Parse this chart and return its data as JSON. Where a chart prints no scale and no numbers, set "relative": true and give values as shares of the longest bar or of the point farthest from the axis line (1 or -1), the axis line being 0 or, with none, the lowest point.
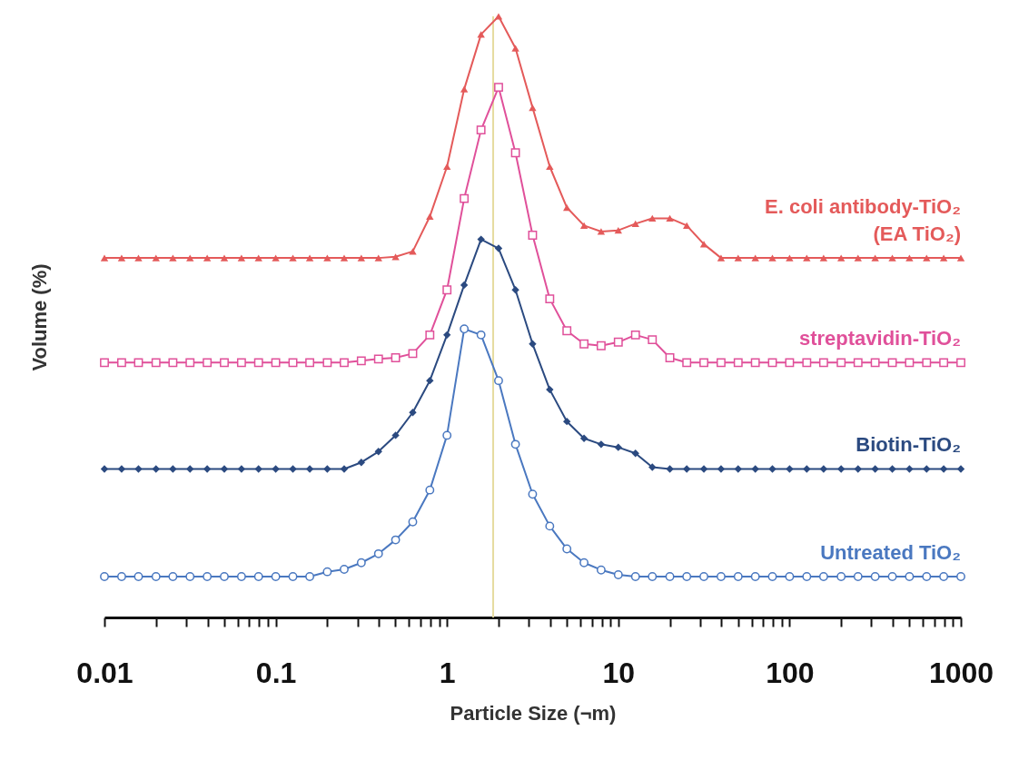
{
  "chart_data": {
    "type": "line",
    "relative": true,
    "xlabel": "Particle Size (¬m)",
    "ylabel": "Volume (%)",
    "log": "x",
    "grid": false,
    "legend": false,
    "xlim": [
      0.01,
      1000
    ],
    "xticks": [
      0.01,
      {
        "value": 0.02,
        "label": null
      },
      {
        "value": 0.03,
        "label": null
      },
      {
        "value": 0.04,
        "label": null
      },
      {
        "value": 0.05,
        "label": null
      },
      {
        "value": 0.06,
        "label": null
      },
      {
        "value": 0.07,
        "label": null
      },
      {
        "value": 0.08,
        "label": null
      },
      {
        "value": 0.09,
        "label": null
      },
      0.1,
      {
        "value": 0.2,
        "label": null
      },
      {
        "value": 0.3,
        "label": null
      },
      {
        "value": 0.4,
        "label": null
      },
      {
        "value": 0.5,
        "label": null
      },
      {
        "value": 0.6,
        "label": null
      },
      {
        "value": 0.7,
        "label": null
      },
      {
        "value": 0.8,
        "label": null
      },
      {
        "value": 0.9,
        "label": null
      },
      1,
      {
        "value": 2,
        "label": null
      },
      {
        "value": 3,
        "label": null
      },
      {
        "value": 4,
        "label": null
      },
      {
        "value": 5,
        "label": null
      },
      {
        "value": 6,
        "label": null
      },
      {
        "value": 7,
        "label": null
      },
      {
        "value": 8,
        "label": null
      },
      {
        "value": 9,
        "label": null
      },
      10,
      {
        "value": 20,
        "label": null
      },
      {
        "value": 30,
        "label": null
      },
      {
        "value": 40,
        "label": null
      },
      {
        "value": 50,
        "label": null
      },
      {
        "value": 60,
        "label": null
      },
      {
        "value": 70,
        "label": null
      },
      {
        "value": 80,
        "label": null
      },
      {
        "value": 90,
        "label": null
      },
      100,
      {
        "value": 200,
        "label": null
      },
      {
        "value": 300,
        "label": null
      },
      {
        "value": 400,
        "label": null
      },
      {
        "value": 500,
        "label": null
      },
      {
        "value": 600,
        "label": null
      },
      {
        "value": 700,
        "label": null
      },
      {
        "value": 800,
        "label": null
      },
      {
        "value": 900,
        "label": null
      },
      1000
    ],
    "x": [
      0.01,
      0.0126,
      0.0158,
      0.02,
      0.0251,
      0.0316,
      0.0398,
      0.0501,
      0.0631,
      0.0794,
      0.1,
      0.126,
      0.158,
      0.2,
      0.251,
      0.316,
      0.398,
      0.501,
      0.631,
      0.794,
      1,
      1.26,
      1.58,
      2,
      2.51,
      3.16,
      3.98,
      5.01,
      6.31,
      7.94,
      10,
      12.6,
      15.8,
      20,
      25.1,
      31.6,
      39.8,
      50.1,
      63.1,
      79.4,
      100,
      126,
      158,
      200,
      251,
      316,
      398,
      501,
      631,
      794,
      1000
    ],
    "ref_lines": [
      {
        "axis": "x",
        "value": 1.86,
        "color": "#e6dca0"
      }
    ],
    "series": [
      {
        "name": "E. coli antibody-TiO₂\n(EA TiO₂)",
        "color": "#e45a5a",
        "marker": "triangle",
        "values": [
          0.598,
          0.598,
          0.598,
          0.598,
          0.598,
          0.598,
          0.598,
          0.598,
          0.598,
          0.598,
          0.598,
          0.598,
          0.598,
          0.598,
          0.598,
          0.598,
          0.598,
          0.6,
          0.609,
          0.667,
          0.75,
          0.879,
          0.97,
          1.0,
          0.947,
          0.848,
          0.75,
          0.682,
          0.652,
          0.642,
          0.644,
          0.655,
          0.664,
          0.664,
          0.652,
          0.621,
          0.598,
          0.598,
          0.598,
          0.598,
          0.598,
          0.598,
          0.598,
          0.598,
          0.598,
          0.598,
          0.598,
          0.598,
          0.598,
          0.598,
          0.598
        ]
      },
      {
        "name": "streptavidin-TiO₂",
        "color": "#e0509a",
        "marker": "square",
        "values": [
          0.424,
          0.424,
          0.424,
          0.424,
          0.424,
          0.424,
          0.424,
          0.424,
          0.424,
          0.424,
          0.424,
          0.424,
          0.424,
          0.424,
          0.424,
          0.427,
          0.43,
          0.432,
          0.439,
          0.47,
          0.545,
          0.697,
          0.811,
          0.882,
          0.773,
          0.636,
          0.53,
          0.477,
          0.455,
          0.452,
          0.458,
          0.47,
          0.462,
          0.432,
          0.424,
          0.424,
          0.424,
          0.424,
          0.424,
          0.424,
          0.424,
          0.424,
          0.424,
          0.424,
          0.424,
          0.424,
          0.424,
          0.424,
          0.424,
          0.424,
          0.424
        ]
      },
      {
        "name": "Biotin-TiO₂",
        "color": "#2b4a80",
        "marker": "diamond",
        "values": [
          0.247,
          0.247,
          0.247,
          0.247,
          0.247,
          0.247,
          0.247,
          0.247,
          0.247,
          0.247,
          0.247,
          0.247,
          0.247,
          0.247,
          0.247,
          0.258,
          0.276,
          0.303,
          0.341,
          0.394,
          0.47,
          0.553,
          0.629,
          0.614,
          0.545,
          0.455,
          0.379,
          0.326,
          0.298,
          0.288,
          0.283,
          0.273,
          0.25,
          0.247,
          0.247,
          0.247,
          0.247,
          0.247,
          0.247,
          0.247,
          0.247,
          0.247,
          0.247,
          0.247,
          0.247,
          0.247,
          0.247,
          0.247,
          0.247,
          0.247,
          0.247
        ]
      },
      {
        "name": "Untreated TiO₂",
        "color": "#4a78c0",
        "marker": "circle",
        "values": [
          0.068,
          0.068,
          0.068,
          0.068,
          0.068,
          0.068,
          0.068,
          0.068,
          0.068,
          0.068,
          0.068,
          0.068,
          0.068,
          0.076,
          0.08,
          0.091,
          0.106,
          0.129,
          0.159,
          0.212,
          0.303,
          0.48,
          0.47,
          0.394,
          0.288,
          0.205,
          0.152,
          0.114,
          0.091,
          0.079,
          0.071,
          0.068,
          0.068,
          0.068,
          0.068,
          0.068,
          0.068,
          0.068,
          0.068,
          0.068,
          0.068,
          0.068,
          0.068,
          0.068,
          0.068,
          0.068,
          0.068,
          0.068,
          0.068,
          0.068,
          0.068
        ]
      }
    ]
  }
}
